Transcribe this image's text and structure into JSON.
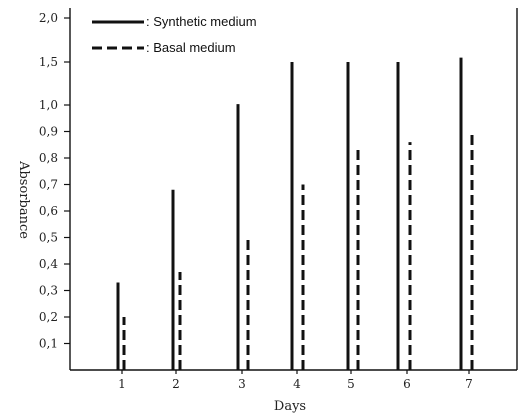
{
  "chart_data": {
    "type": "bar",
    "xlabel": "Days",
    "ylabel": "Absorbance",
    "categories": [
      "1",
      "2",
      "3",
      "4",
      "5",
      "6",
      "7"
    ],
    "yticks": [
      "0,1",
      "0,2",
      "0,3",
      "0,4",
      "0,5",
      "0,6",
      "0,7",
      "0,8",
      "0,9",
      "1,0",
      "1,5",
      "2,0"
    ],
    "series": [
      {
        "name": ": Synthetic medium",
        "style": "solid",
        "values": [
          0.33,
          0.68,
          1.01,
          1.5,
          1.5,
          1.5,
          1.55
        ]
      },
      {
        "name": ": Basal medium",
        "style": "dashed",
        "values": [
          0.2,
          0.37,
          0.5,
          0.7,
          0.83,
          0.86,
          0.89
        ]
      }
    ],
    "ylim": [
      0,
      2.0
    ],
    "grid": false,
    "legend": "top-left",
    "colors": {
      "bars": "#111111",
      "axis": "#111111"
    }
  }
}
